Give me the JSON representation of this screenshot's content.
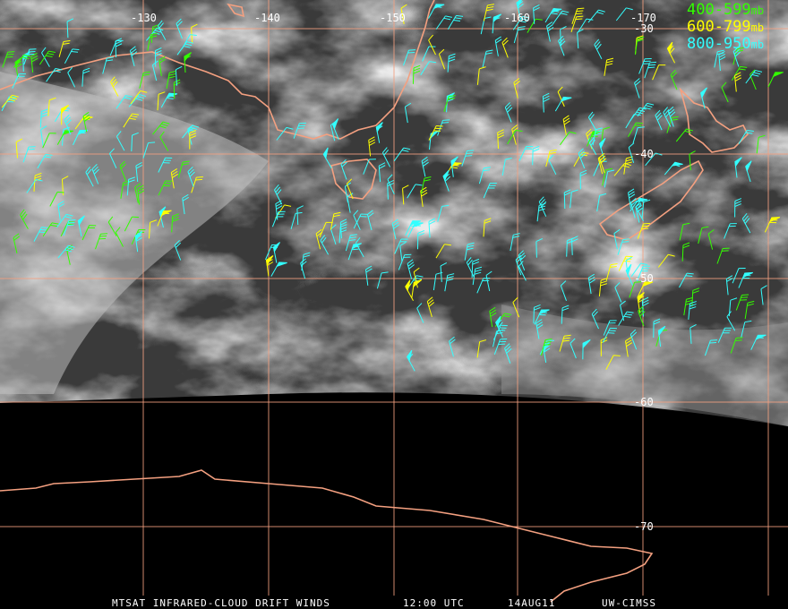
{
  "map": {
    "longitude_labels": [
      "-130",
      "-140",
      "-150",
      "-160",
      "-170"
    ],
    "latitude_labels": [
      "-30",
      "-40",
      "-50",
      "-60",
      "-70"
    ],
    "legend": [
      {
        "label": "400-599",
        "unit": "mb",
        "color": "#33ff00"
      },
      {
        "label": "600-799",
        "unit": "mb",
        "color": "#ffff00"
      },
      {
        "label": "800-950",
        "unit": "mb",
        "color": "#33ffff"
      }
    ],
    "footer": [
      "MTSAT INFRARED-CLOUD DRIFT WINDS",
      "12:00 UTC",
      "14AUG11",
      "UW-CIMSS"
    ]
  }
}
